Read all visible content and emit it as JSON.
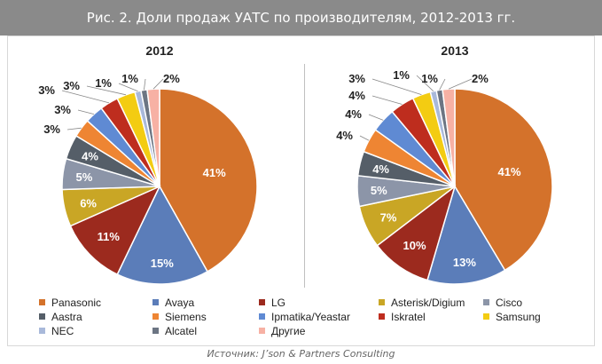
{
  "header": {
    "title": "Рис. 2. Доли продаж УАТС по производителям, 2012-2013 гг."
  },
  "source": "Источник: J’son & Partners Consulting",
  "legend": {
    "items": [
      {
        "label": "Panasonic",
        "color": "#D4722B"
      },
      {
        "label": "Avaya",
        "color": "#5B7DB9"
      },
      {
        "label": "LG",
        "color": "#9C2A1E"
      },
      {
        "label": "Asterisk/Digium",
        "color": "#C9A625"
      },
      {
        "label": "Cisco",
        "color": "#8C95A8"
      },
      {
        "label": "Aastra",
        "color": "#555E68"
      },
      {
        "label": "Siemens",
        "color": "#EE8533"
      },
      {
        "label": "Ipmatika/Yeastar",
        "color": "#5F8AD3"
      },
      {
        "label": "Iskratel",
        "color": "#BE2D1E"
      },
      {
        "label": "Samsung",
        "color": "#F3CC12"
      },
      {
        "label": "NEC",
        "color": "#A9B9DA"
      },
      {
        "label": "Alcatel",
        "color": "#6C7583"
      },
      {
        "label": "Другие",
        "color": "#F7B1A4"
      }
    ]
  },
  "chart_data": [
    {
      "type": "pie",
      "title": "2012",
      "categories": [
        "Panasonic",
        "Avaya",
        "LG",
        "Asterisk/Digium",
        "Cisco",
        "Aastra",
        "Siemens",
        "Ipmatika/Yeastar",
        "Iskratel",
        "Samsung",
        "NEC",
        "Alcatel",
        "Другие"
      ],
      "values": [
        41,
        15,
        11,
        6,
        5,
        4,
        3,
        3,
        3,
        3,
        1,
        1,
        2
      ],
      "labels": [
        "41%",
        "15%",
        "11%",
        "6%",
        "5%",
        "4%",
        "3%",
        "3%",
        "3%",
        "3%",
        "1%",
        "1%",
        "2%"
      ]
    },
    {
      "type": "pie",
      "title": "2013",
      "categories": [
        "Panasonic",
        "Avaya",
        "LG",
        "Asterisk/Digium",
        "Cisco",
        "Aastra",
        "Siemens",
        "Ipmatika/Yeastar",
        "Iskratel",
        "Samsung",
        "NEC",
        "Alcatel",
        "Другие"
      ],
      "values": [
        41,
        13,
        10,
        7,
        5,
        4,
        4,
        4,
        4,
        3,
        1,
        1,
        2
      ],
      "labels": [
        "41%",
        "13%",
        "10%",
        "7%",
        "5%",
        "4%",
        "4%",
        "4%",
        "4%",
        "3%",
        "1%",
        "1%",
        "2%"
      ]
    }
  ]
}
